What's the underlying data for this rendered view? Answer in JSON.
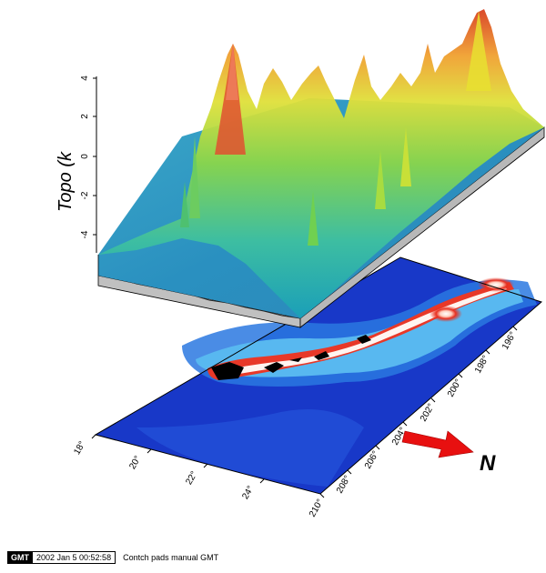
{
  "figure": {
    "z_axis_label": "Topo (k",
    "z_ticks": [
      "-4",
      "-2",
      "0",
      "2",
      "4"
    ],
    "north_label": "N",
    "left_axis_ticks": [
      "18°",
      "20°",
      "22°",
      "24°"
    ],
    "right_axis_ticks": [
      "210°",
      "208°",
      "206°",
      "204°",
      "202°",
      "200°",
      "198°",
      "196°"
    ],
    "colors": {
      "deep_ocean": "#1030c8",
      "mid_ocean": "#2a70e0",
      "shallow": "#40c8e8",
      "surface_low": "#39b8a0",
      "surface_mid": "#78d040",
      "surface_high": "#e8e030",
      "surface_peak": "#e04020",
      "north_arrow": "#e81010",
      "island": "#000000"
    }
  },
  "footer": {
    "logo": "GMT",
    "date": "2002 Jan  5 00:52:58",
    "command": "Contch pads manual GMT"
  }
}
